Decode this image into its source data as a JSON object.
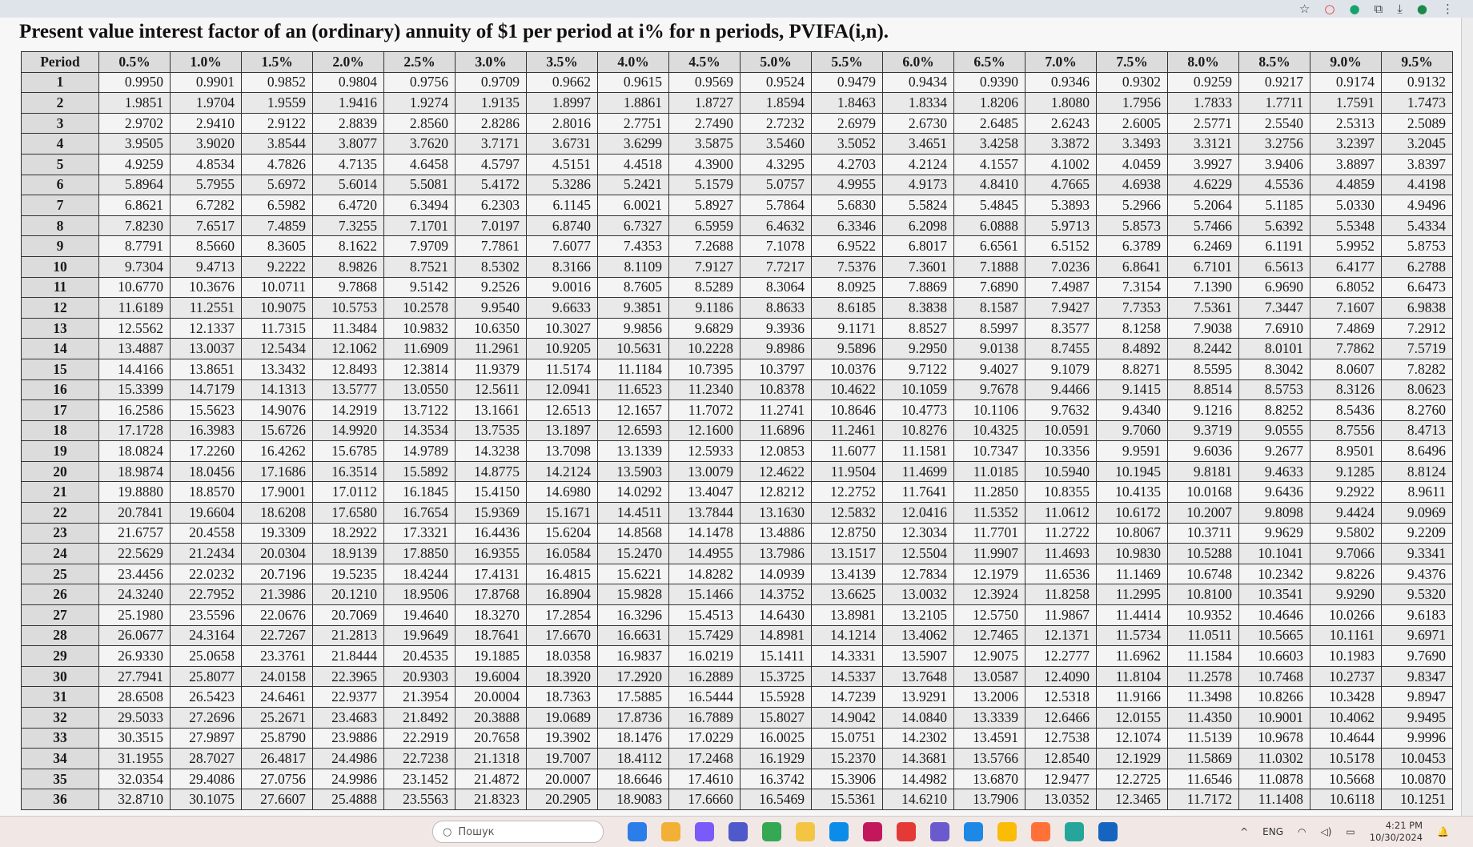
{
  "title": "Present value interest factor of an (ordinary) annuity of $1 per period at i% for n periods, PVIFA(i,n).",
  "period_header": "Period",
  "periods": [
    "1",
    "2",
    "3",
    "4",
    "5",
    "6",
    "7",
    "8",
    "9",
    "10",
    "11",
    "12",
    "13",
    "14",
    "15",
    "16",
    "17",
    "18",
    "19",
    "20",
    "21",
    "22",
    "23",
    "24",
    "25",
    "26",
    "27",
    "28",
    "29",
    "30",
    "31",
    "32",
    "33",
    "34",
    "35",
    "36"
  ],
  "columns": [
    {
      "rate": "0.5%",
      "values": [
        "0.9950",
        "1.9851",
        "2.9702",
        "3.9505",
        "4.9259",
        "5.8964",
        "6.8621",
        "7.8230",
        "8.7791",
        "9.7304",
        "10.6770",
        "11.6189",
        "12.5562",
        "13.4887",
        "14.4166",
        "15.3399",
        "16.2586",
        "17.1728",
        "18.0824",
        "18.9874",
        "19.8880",
        "20.7841",
        "21.6757",
        "22.5629",
        "23.4456",
        "24.3240",
        "25.1980",
        "26.0677",
        "26.9330",
        "27.7941",
        "28.6508",
        "29.5033",
        "30.3515",
        "31.1955",
        "32.0354",
        "32.8710"
      ]
    },
    {
      "rate": "1.0%",
      "values": [
        "0.9901",
        "1.9704",
        "2.9410",
        "3.9020",
        "4.8534",
        "5.7955",
        "6.7282",
        "7.6517",
        "8.5660",
        "9.4713",
        "10.3676",
        "11.2551",
        "12.1337",
        "13.0037",
        "13.8651",
        "14.7179",
        "15.5623",
        "16.3983",
        "17.2260",
        "18.0456",
        "18.8570",
        "19.6604",
        "20.4558",
        "21.2434",
        "22.0232",
        "22.7952",
        "23.5596",
        "24.3164",
        "25.0658",
        "25.8077",
        "26.5423",
        "27.2696",
        "27.9897",
        "28.7027",
        "29.4086",
        "30.1075"
      ]
    },
    {
      "rate": "1.5%",
      "values": [
        "0.9852",
        "1.9559",
        "2.9122",
        "3.8544",
        "4.7826",
        "5.6972",
        "6.5982",
        "7.4859",
        "8.3605",
        "9.2222",
        "10.0711",
        "10.9075",
        "11.7315",
        "12.5434",
        "13.3432",
        "14.1313",
        "14.9076",
        "15.6726",
        "16.4262",
        "17.1686",
        "17.9001",
        "18.6208",
        "19.3309",
        "20.0304",
        "20.7196",
        "21.3986",
        "22.0676",
        "22.7267",
        "23.3761",
        "24.0158",
        "24.6461",
        "25.2671",
        "25.8790",
        "26.4817",
        "27.0756",
        "27.6607"
      ]
    },
    {
      "rate": "2.0%",
      "values": [
        "0.9804",
        "1.9416",
        "2.8839",
        "3.8077",
        "4.7135",
        "5.6014",
        "6.4720",
        "7.3255",
        "8.1622",
        "8.9826",
        "9.7868",
        "10.5753",
        "11.3484",
        "12.1062",
        "12.8493",
        "13.5777",
        "14.2919",
        "14.9920",
        "15.6785",
        "16.3514",
        "17.0112",
        "17.6580",
        "18.2922",
        "18.9139",
        "19.5235",
        "20.1210",
        "20.7069",
        "21.2813",
        "21.8444",
        "22.3965",
        "22.9377",
        "23.4683",
        "23.9886",
        "24.4986",
        "24.9986",
        "25.4888"
      ]
    },
    {
      "rate": "2.5%",
      "values": [
        "0.9756",
        "1.9274",
        "2.8560",
        "3.7620",
        "4.6458",
        "5.5081",
        "6.3494",
        "7.1701",
        "7.9709",
        "8.7521",
        "9.5142",
        "10.2578",
        "10.9832",
        "11.6909",
        "12.3814",
        "13.0550",
        "13.7122",
        "14.3534",
        "14.9789",
        "15.5892",
        "16.1845",
        "16.7654",
        "17.3321",
        "17.8850",
        "18.4244",
        "18.9506",
        "19.4640",
        "19.9649",
        "20.4535",
        "20.9303",
        "21.3954",
        "21.8492",
        "22.2919",
        "22.7238",
        "23.1452",
        "23.5563"
      ]
    },
    {
      "rate": "3.0%",
      "values": [
        "0.9709",
        "1.9135",
        "2.8286",
        "3.7171",
        "4.5797",
        "5.4172",
        "6.2303",
        "7.0197",
        "7.7861",
        "8.5302",
        "9.2526",
        "9.9540",
        "10.6350",
        "11.2961",
        "11.9379",
        "12.5611",
        "13.1661",
        "13.7535",
        "14.3238",
        "14.8775",
        "15.4150",
        "15.9369",
        "16.4436",
        "16.9355",
        "17.4131",
        "17.8768",
        "18.3270",
        "18.7641",
        "19.1885",
        "19.6004",
        "20.0004",
        "20.3888",
        "20.7658",
        "21.1318",
        "21.4872",
        "21.8323"
      ]
    },
    {
      "rate": "3.5%",
      "values": [
        "0.9662",
        "1.8997",
        "2.8016",
        "3.6731",
        "4.5151",
        "5.3286",
        "6.1145",
        "6.8740",
        "7.6077",
        "8.3166",
        "9.0016",
        "9.6633",
        "10.3027",
        "10.9205",
        "11.5174",
        "12.0941",
        "12.6513",
        "13.1897",
        "13.7098",
        "14.2124",
        "14.6980",
        "15.1671",
        "15.6204",
        "16.0584",
        "16.4815",
        "16.8904",
        "17.2854",
        "17.6670",
        "18.0358",
        "18.3920",
        "18.7363",
        "19.0689",
        "19.3902",
        "19.7007",
        "20.0007",
        "20.2905"
      ]
    },
    {
      "rate": "4.0%",
      "values": [
        "0.9615",
        "1.8861",
        "2.7751",
        "3.6299",
        "4.4518",
        "5.2421",
        "6.0021",
        "6.7327",
        "7.4353",
        "8.1109",
        "8.7605",
        "9.3851",
        "9.9856",
        "10.5631",
        "11.1184",
        "11.6523",
        "12.1657",
        "12.6593",
        "13.1339",
        "13.5903",
        "14.0292",
        "14.4511",
        "14.8568",
        "15.2470",
        "15.6221",
        "15.9828",
        "16.3296",
        "16.6631",
        "16.9837",
        "17.2920",
        "17.5885",
        "17.8736",
        "18.1476",
        "18.4112",
        "18.6646",
        "18.9083"
      ]
    },
    {
      "rate": "4.5%",
      "values": [
        "0.9569",
        "1.8727",
        "2.7490",
        "3.5875",
        "4.3900",
        "5.1579",
        "5.8927",
        "6.5959",
        "7.2688",
        "7.9127",
        "8.5289",
        "9.1186",
        "9.6829",
        "10.2228",
        "10.7395",
        "11.2340",
        "11.7072",
        "12.1600",
        "12.5933",
        "13.0079",
        "13.4047",
        "13.7844",
        "14.1478",
        "14.4955",
        "14.8282",
        "15.1466",
        "15.4513",
        "15.7429",
        "16.0219",
        "16.2889",
        "16.5444",
        "16.7889",
        "17.0229",
        "17.2468",
        "17.4610",
        "17.6660"
      ]
    },
    {
      "rate": "5.0%",
      "values": [
        "0.9524",
        "1.8594",
        "2.7232",
        "3.5460",
        "4.3295",
        "5.0757",
        "5.7864",
        "6.4632",
        "7.1078",
        "7.7217",
        "8.3064",
        "8.8633",
        "9.3936",
        "9.8986",
        "10.3797",
        "10.8378",
        "11.2741",
        "11.6896",
        "12.0853",
        "12.4622",
        "12.8212",
        "13.1630",
        "13.4886",
        "13.7986",
        "14.0939",
        "14.3752",
        "14.6430",
        "14.8981",
        "15.1411",
        "15.3725",
        "15.5928",
        "15.8027",
        "16.0025",
        "16.1929",
        "16.3742",
        "16.5469"
      ]
    },
    {
      "rate": "5.5%",
      "values": [
        "0.9479",
        "1.8463",
        "2.6979",
        "3.5052",
        "4.2703",
        "4.9955",
        "5.6830",
        "6.3346",
        "6.9522",
        "7.5376",
        "8.0925",
        "8.6185",
        "9.1171",
        "9.5896",
        "10.0376",
        "10.4622",
        "10.8646",
        "11.2461",
        "11.6077",
        "11.9504",
        "12.2752",
        "12.5832",
        "12.8750",
        "13.1517",
        "13.4139",
        "13.6625",
        "13.8981",
        "14.1214",
        "14.3331",
        "14.5337",
        "14.7239",
        "14.9042",
        "15.0751",
        "15.2370",
        "15.3906",
        "15.5361"
      ]
    },
    {
      "rate": "6.0%",
      "values": [
        "0.9434",
        "1.8334",
        "2.6730",
        "3.4651",
        "4.2124",
        "4.9173",
        "5.5824",
        "6.2098",
        "6.8017",
        "7.3601",
        "7.8869",
        "8.3838",
        "8.8527",
        "9.2950",
        "9.7122",
        "10.1059",
        "10.4773",
        "10.8276",
        "11.1581",
        "11.4699",
        "11.7641",
        "12.0416",
        "12.3034",
        "12.5504",
        "12.7834",
        "13.0032",
        "13.2105",
        "13.4062",
        "13.5907",
        "13.7648",
        "13.9291",
        "14.0840",
        "14.2302",
        "14.3681",
        "14.4982",
        "14.6210"
      ]
    },
    {
      "rate": "6.5%",
      "values": [
        "0.9390",
        "1.8206",
        "2.6485",
        "3.4258",
        "4.1557",
        "4.8410",
        "5.4845",
        "6.0888",
        "6.6561",
        "7.1888",
        "7.6890",
        "8.1587",
        "8.5997",
        "9.0138",
        "9.4027",
        "9.7678",
        "10.1106",
        "10.4325",
        "10.7347",
        "11.0185",
        "11.2850",
        "11.5352",
        "11.7701",
        "11.9907",
        "12.1979",
        "12.3924",
        "12.5750",
        "12.7465",
        "12.9075",
        "13.0587",
        "13.2006",
        "13.3339",
        "13.4591",
        "13.5766",
        "13.6870",
        "13.7906"
      ]
    },
    {
      "rate": "7.0%",
      "values": [
        "0.9346",
        "1.8080",
        "2.6243",
        "3.3872",
        "4.1002",
        "4.7665",
        "5.3893",
        "5.9713",
        "6.5152",
        "7.0236",
        "7.4987",
        "7.9427",
        "8.3577",
        "8.7455",
        "9.1079",
        "9.4466",
        "9.7632",
        "10.0591",
        "10.3356",
        "10.5940",
        "10.8355",
        "11.0612",
        "11.2722",
        "11.4693",
        "11.6536",
        "11.8258",
        "11.9867",
        "12.1371",
        "12.2777",
        "12.4090",
        "12.5318",
        "12.6466",
        "12.7538",
        "12.8540",
        "12.9477",
        "13.0352"
      ]
    },
    {
      "rate": "7.5%",
      "values": [
        "0.9302",
        "1.7956",
        "2.6005",
        "3.3493",
        "4.0459",
        "4.6938",
        "5.2966",
        "5.8573",
        "6.3789",
        "6.8641",
        "7.3154",
        "7.7353",
        "8.1258",
        "8.4892",
        "8.8271",
        "9.1415",
        "9.4340",
        "9.7060",
        "9.9591",
        "10.1945",
        "10.4135",
        "10.6172",
        "10.8067",
        "10.9830",
        "11.1469",
        "11.2995",
        "11.4414",
        "11.5734",
        "11.6962",
        "11.8104",
        "11.9166",
        "12.0155",
        "12.1074",
        "12.1929",
        "12.2725",
        "12.3465"
      ]
    },
    {
      "rate": "8.0%",
      "values": [
        "0.9259",
        "1.7833",
        "2.5771",
        "3.3121",
        "3.9927",
        "4.6229",
        "5.2064",
        "5.7466",
        "6.2469",
        "6.7101",
        "7.1390",
        "7.5361",
        "7.9038",
        "8.2442",
        "8.5595",
        "8.8514",
        "9.1216",
        "9.3719",
        "9.6036",
        "9.8181",
        "10.0168",
        "10.2007",
        "10.3711",
        "10.5288",
        "10.6748",
        "10.8100",
        "10.9352",
        "11.0511",
        "11.1584",
        "11.2578",
        "11.3498",
        "11.4350",
        "11.5139",
        "11.5869",
        "11.6546",
        "11.7172"
      ]
    },
    {
      "rate": "8.5%",
      "values": [
        "0.9217",
        "1.7711",
        "2.5540",
        "3.2756",
        "3.9406",
        "4.5536",
        "5.1185",
        "5.6392",
        "6.1191",
        "6.5613",
        "6.9690",
        "7.3447",
        "7.6910",
        "8.0101",
        "8.3042",
        "8.5753",
        "8.8252",
        "9.0555",
        "9.2677",
        "9.4633",
        "9.6436",
        "9.8098",
        "9.9629",
        "10.1041",
        "10.2342",
        "10.3541",
        "10.4646",
        "10.5665",
        "10.6603",
        "10.7468",
        "10.8266",
        "10.9001",
        "10.9678",
        "11.0302",
        "11.0878",
        "11.1408"
      ]
    },
    {
      "rate": "9.0%",
      "values": [
        "0.9174",
        "1.7591",
        "2.5313",
        "3.2397",
        "3.8897",
        "4.4859",
        "5.0330",
        "5.5348",
        "5.9952",
        "6.4177",
        "6.8052",
        "7.1607",
        "7.4869",
        "7.7862",
        "8.0607",
        "8.3126",
        "8.5436",
        "8.7556",
        "8.9501",
        "9.1285",
        "9.2922",
        "9.4424",
        "9.5802",
        "9.7066",
        "9.8226",
        "9.9290",
        "10.0266",
        "10.1161",
        "10.1983",
        "10.2737",
        "10.3428",
        "10.4062",
        "10.4644",
        "10.5178",
        "10.5668",
        "10.6118"
      ]
    },
    {
      "rate": "9.5%",
      "values": [
        "0.9132",
        "1.7473",
        "2.5089",
        "3.2045",
        "3.8397",
        "4.4198",
        "4.9496",
        "5.4334",
        "5.8753",
        "6.2788",
        "6.6473",
        "6.9838",
        "7.2912",
        "7.5719",
        "7.8282",
        "8.0623",
        "8.2760",
        "8.4713",
        "8.6496",
        "8.8124",
        "8.9611",
        "9.0969",
        "9.2209",
        "9.3341",
        "9.4376",
        "9.5320",
        "9.6183",
        "9.6971",
        "9.7690",
        "9.8347",
        "9.8947",
        "9.9495",
        "9.9996",
        "10.0453",
        "10.0870",
        "10.1251"
      ]
    }
  ],
  "taskbar": {
    "search_placeholder": "Пошук",
    "language": "ENG",
    "time": "4:21 PM",
    "date": "10/30/2024",
    "app_icons": [
      "windows-start",
      "file-explorer",
      "copilot",
      "teams",
      "chrome",
      "folder",
      "edge",
      "app",
      "opera",
      "notes",
      "store",
      "chrome-alt",
      "firefox",
      "app-green",
      "app-blue"
    ],
    "app_colors": [
      "#2b7de9",
      "#f2b134",
      "#7a5af8",
      "#5059c9",
      "#34a853",
      "#f4c542",
      "#0c8ce9",
      "#c2185b",
      "#e53935",
      "#6a5acd",
      "#1e88e5",
      "#fbbc05",
      "#ff7139",
      "#26a69a",
      "#1565c0"
    ]
  },
  "browser_icons": [
    "star-icon",
    "opera-icon",
    "grammarly-icon",
    "extensions-icon",
    "download-icon",
    "profile-icon",
    "menu-icon"
  ]
}
